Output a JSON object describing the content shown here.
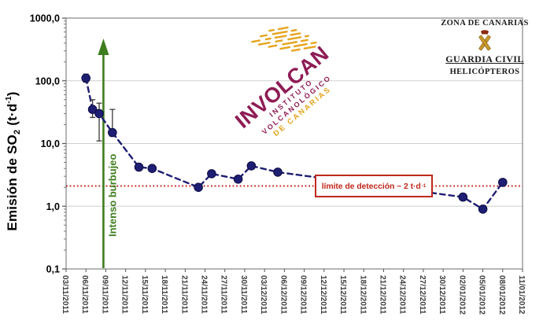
{
  "figure": {
    "background": "#ffffff",
    "y_axis_title": {
      "main": "Emisión de SO",
      "sub": "2",
      "rest": " (t·d",
      "sup": "-1",
      "close": ")"
    },
    "logo": {
      "name": "INVOLCAN",
      "line1": "INSTITUTO",
      "line2": "VOLCANOLÓGICO",
      "line3": "DE CANARIAS",
      "color_main": "#8E1C55",
      "color_accent": "#E5A41E"
    },
    "credit": {
      "line1": "ZONA DE CANARIAS",
      "line2": "GUARDIA CIVIL",
      "line3": "HELICÓPTEROS"
    }
  },
  "chart_data": {
    "type": "line",
    "title": "",
    "xlabel": "",
    "ylabel": "Emisión de SO2 (t·d-1)",
    "y_scale": "log",
    "y_min": 0.1,
    "y_max": 1000,
    "y_tick_values": [
      1000,
      100,
      10,
      1,
      0.1
    ],
    "y_tick_labels": [
      "1000,0",
      "100,0",
      "10,0",
      "1,0",
      "0,1"
    ],
    "x_tick_labels": [
      "03/11/2011",
      "06/11/2011",
      "09/11/2011",
      "12/11/2011",
      "15/11/2011",
      "18/11/2011",
      "21/11/2011",
      "24/11/2011",
      "27/11/2011",
      "30/11/2011",
      "03/12/2011",
      "06/12/2011",
      "09/12/2011",
      "12/12/2011",
      "15/12/2011",
      "18/12/2011",
      "21/12/2011",
      "24/12/2011",
      "27/12/2011",
      "30/12/2011",
      "02/01/2012",
      "05/01/2012",
      "08/01/2012",
      "11/01/2012"
    ],
    "grid": "horizontal-decades",
    "legend": "none",
    "series": [
      {
        "name": "Emisión de SO2",
        "color": "#1E1E73",
        "line_style": "dashed",
        "points": [
          {
            "date": "06/11/2011",
            "value": 110,
            "err_lo": 95,
            "err_hi": 128
          },
          {
            "date": "07/11/2011",
            "value": 35,
            "err_lo": 26,
            "err_hi": 50
          },
          {
            "date": "08/11/2011",
            "value": 30,
            "err_lo": 11,
            "err_hi": 44
          },
          {
            "date": "10/11/2011",
            "value": 15,
            "err_lo": 13,
            "err_hi": 35
          },
          {
            "date": "14/11/2011",
            "value": 4.2
          },
          {
            "date": "16/11/2011",
            "value": 4.0
          },
          {
            "date": "23/11/2011",
            "value": 2.0
          },
          {
            "date": "25/11/2011",
            "value": 3.3
          },
          {
            "date": "29/11/2011",
            "value": 2.7
          },
          {
            "date": "01/12/2011",
            "value": 4.4
          },
          {
            "date": "05/12/2011",
            "value": 3.5
          },
          {
            "date": "02/01/2012",
            "value": 1.4
          },
          {
            "date": "05/01/2012",
            "value": 0.9
          },
          {
            "date": "08/01/2012",
            "value": 2.4
          }
        ]
      }
    ],
    "detection_limit": {
      "value": 2.1,
      "label_main": "límite de detección ~ 2 t·d",
      "label_sup": "-1",
      "color": "#C0281C"
    },
    "event_arrow": {
      "date": "09/11/2011",
      "label": "Intenso burbujeo",
      "color": "#3E7D1E"
    }
  }
}
